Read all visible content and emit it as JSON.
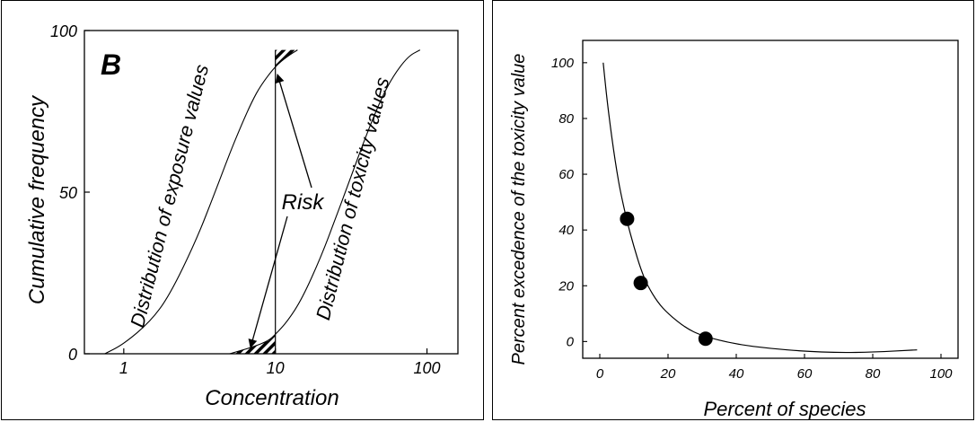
{
  "chart_data": [
    {
      "type": "line",
      "panel_label": "B",
      "xlabel": "Concentration",
      "ylabel": "Cumulative frequency",
      "x_scale": "log",
      "xlim": [
        0.55,
        160
      ],
      "ylim": [
        0,
        100
      ],
      "x_ticks": [
        "1",
        "10",
        "100"
      ],
      "y_ticks": [
        "0",
        "50",
        "100"
      ],
      "series": [
        {
          "name": "Distribution of exposure values",
          "x": [
            0.75,
            1.0,
            1.5,
            2.0,
            3.0,
            4.0,
            5.0,
            6.0,
            7.0,
            8.0,
            10.0,
            12.0,
            14.0
          ],
          "y": [
            0,
            3,
            10,
            18,
            35,
            50,
            62,
            71,
            78,
            83,
            89,
            92,
            94
          ]
        },
        {
          "name": "Distribution of toxicity values",
          "x": [
            5.0,
            7.0,
            9.0,
            10.0,
            12.0,
            15.0,
            20.0,
            25.0,
            30.0,
            40.0,
            50.0,
            60.0,
            75.0,
            90.0
          ],
          "y": [
            0,
            2,
            4,
            6,
            10,
            17,
            30,
            42,
            52,
            68,
            79,
            86,
            92,
            94
          ]
        }
      ],
      "threshold_x": 10,
      "annotations": [
        "Risk"
      ]
    },
    {
      "type": "scatter",
      "xlabel": "Percent of species",
      "ylabel": "Percent excedence of the toxicity value",
      "xlim": [
        -5,
        105
      ],
      "ylim": [
        -6,
        108
      ],
      "x_ticks": [
        "0",
        "20",
        "40",
        "60",
        "80",
        "100"
      ],
      "y_ticks": [
        "0",
        "20",
        "40",
        "60",
        "80",
        "100"
      ],
      "points": [
        {
          "x": 8,
          "y": 44
        },
        {
          "x": 12,
          "y": 21
        },
        {
          "x": 31,
          "y": 1
        }
      ],
      "curve": {
        "x": [
          1,
          2,
          3,
          4,
          5,
          6,
          8,
          10,
          12,
          14,
          17,
          20,
          25,
          30,
          40,
          50,
          60,
          70,
          80,
          93
        ],
        "y": [
          100,
          88,
          78,
          69,
          61,
          54,
          43,
          34,
          26,
          20,
          14,
          10,
          5,
          2,
          -1,
          -2.5,
          -3.5,
          -4,
          -3.8,
          -3
        ]
      }
    }
  ]
}
